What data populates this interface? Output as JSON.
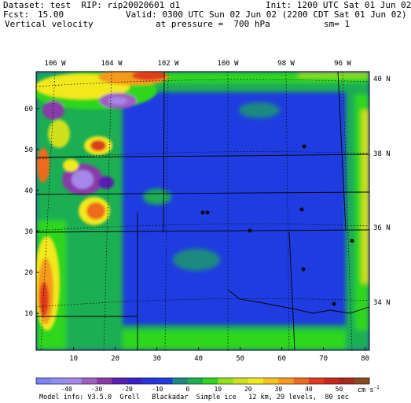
{
  "header": {
    "dataset_line": "Dataset: test  RIP: rip20020601 d1",
    "init_line": "Init: 1200 UTC Sat 01 Jun 02",
    "fcst_label": "Fcst:",
    "fcst_value": "15.00",
    "valid_line": "Valid: 0300 UTC Sun 02 Jun 02 (2200 CDT Sat 01 Jun 02)",
    "field_name": "Vertical velocity",
    "pressure_line": "at pressure =  700 hPa",
    "sm_line": "sm= 1"
  },
  "map": {
    "lon_labels": [
      "106 W",
      "104 W",
      "102 W",
      "100 W",
      "98 W",
      "96 W"
    ],
    "lat_labels": [
      "40 N",
      "38 N",
      "36 N",
      "34 N"
    ],
    "x_grid_ticks": [
      "10",
      "20",
      "30",
      "40",
      "50",
      "60",
      "70",
      "80"
    ],
    "y_grid_ticks": [
      "10",
      "20",
      "30",
      "40",
      "50",
      "60"
    ],
    "x_range": [
      1,
      81
    ],
    "y_range": [
      1,
      69
    ],
    "background_color": "#1f3ce0"
  },
  "colorbar": {
    "colors": [
      "#7b83f5",
      "#8f8ff2",
      "#a487e8",
      "#9f5fbf",
      "#8a3aa8",
      "#5a1fb0",
      "#3d1fc9",
      "#2a35d8",
      "#1f3ce0",
      "#1b8a80",
      "#1fae52",
      "#2fd61e",
      "#8fe01f",
      "#cfe01f",
      "#f2e81f",
      "#f5c21f",
      "#f59a1f",
      "#f06a1f",
      "#e03a1f",
      "#c8281f",
      "#a8281f",
      "#8a4a1f"
    ],
    "labels": [
      "-40",
      "-30",
      "-20",
      "-10",
      "0",
      "10",
      "20",
      "30",
      "40",
      "50"
    ],
    "units": "cm s",
    "units_exp": "-1"
  },
  "footer": {
    "model_info": "Model info: V3.5.0  Grell   Blackadar  Simple ice   12 km, 29 levels,  80 sec"
  }
}
